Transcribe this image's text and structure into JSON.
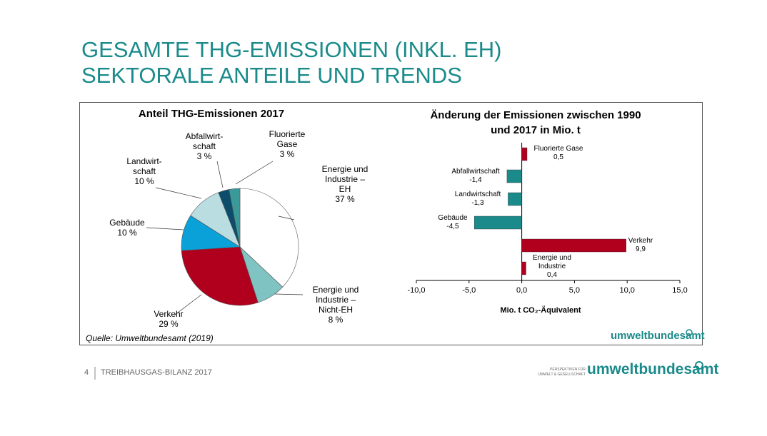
{
  "slide": {
    "title": [
      "GESAMTE THG-EMISSIONEN (INKL. EH)",
      "SEKTORALE ANTEILE UND TRENDS"
    ],
    "source": "Quelle: Umweltbundesamt (2019)",
    "box_logo": "umweltbundesamt",
    "footer": {
      "page": "4",
      "text": "TREIBHAUSGAS-BILANZ 2017",
      "logo_tagline": "PERSPEKTIVEN FÜR\nUMWELT & GESELLSCHAFT",
      "logo": "umweltbundesamt"
    }
  },
  "chart_data": [
    {
      "type": "pie",
      "title": "Anteil THG-Emissionen 2017",
      "categories": [
        "Energie und\nIndustrie –\nEH",
        "Energie und\nIndustrie –\nNicht-EH",
        "Verkehr",
        "Gebäude",
        "Landwirt-\nschaft",
        "Abfallwirt-\nschaft",
        "Fluorierte\nGase"
      ],
      "values": [
        37,
        8,
        29,
        10,
        10,
        3,
        3
      ],
      "value_labels": [
        "37 %",
        "8 %",
        "29 %",
        "10 %",
        "10 %",
        "3 %",
        "3 %"
      ],
      "colors": [
        "#ffffff",
        "#80c3c3",
        "#b0001e",
        "#0aa0d8",
        "#b9dde0",
        "#0d4d6c",
        "#3a9a9a"
      ]
    },
    {
      "type": "hbar",
      "title": "Änderung der Emissionen zwischen 1990\nund 2017 in Mio. t",
      "categories": [
        "Fluorierte Gase",
        "Abfallwirtschaft",
        "Landwirtschaft",
        "Gebäude",
        "Verkehr",
        "Energie und\nIndustrie"
      ],
      "values": [
        0.5,
        -1.4,
        -1.3,
        -4.5,
        9.9,
        0.4
      ],
      "value_labels": [
        "0,5",
        "-1,4",
        "-1,3",
        "-4,5",
        "9,9",
        "0,4"
      ],
      "colors": [
        "#b0001e",
        "#1a8a8a",
        "#1a8a8a",
        "#1a8a8a",
        "#b0001e",
        "#b0001e"
      ],
      "xlabel": "Mio. t CO₂-Äquivalent",
      "xlim": [
        -10,
        15
      ],
      "xticks": [
        {
          "value": -10,
          "label": "-10,0"
        },
        {
          "value": -5,
          "label": "-5,0"
        },
        {
          "value": 0,
          "label": "0,0"
        },
        {
          "value": 5,
          "label": "5,0"
        },
        {
          "value": 10,
          "label": "10,0"
        },
        {
          "value": 15,
          "label": "15,0"
        }
      ]
    }
  ]
}
